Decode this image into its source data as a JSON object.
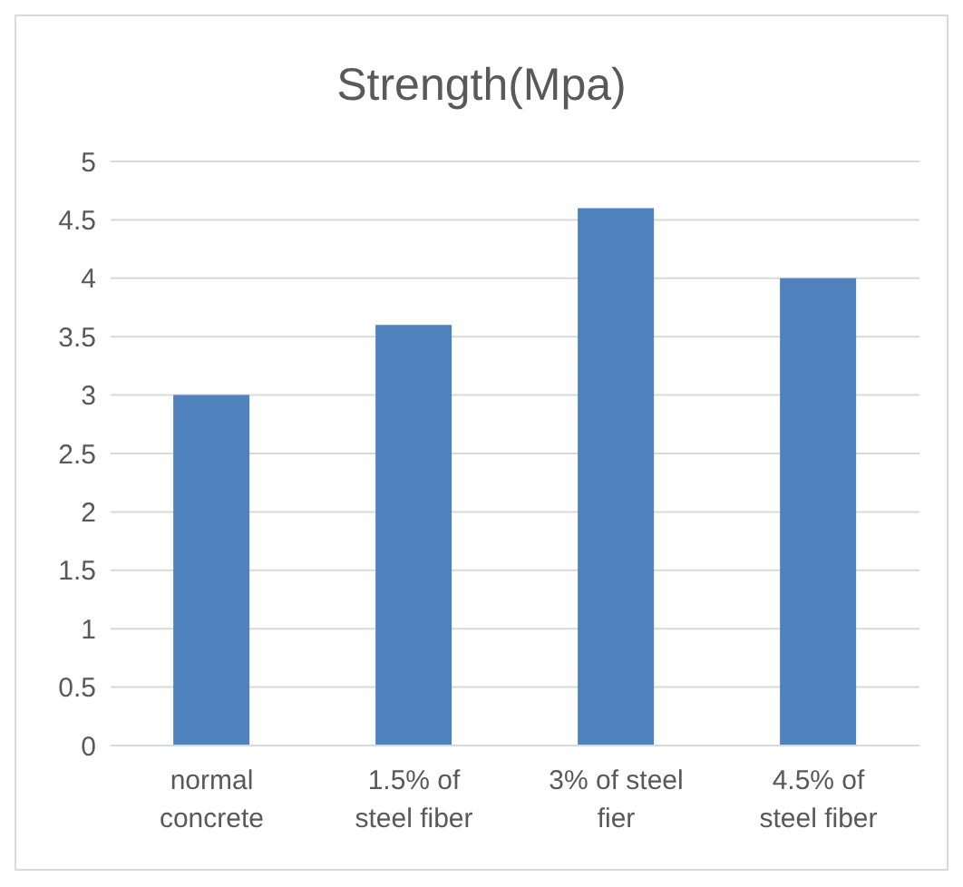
{
  "chart_data": {
    "type": "bar",
    "title": "Strength(Mpa)",
    "categories": [
      "normal concrete",
      "1.5% of steel fiber",
      "3% of steel fier",
      "4.5% of steel fiber"
    ],
    "values": [
      3,
      3.6,
      4.6,
      4
    ],
    "color": "#4f81bd",
    "ylim": [
      0,
      5
    ],
    "yticks": [
      0,
      0.5,
      1,
      1.5,
      2,
      2.5,
      3,
      3.5,
      4,
      4.5,
      5
    ],
    "grid": "y"
  }
}
